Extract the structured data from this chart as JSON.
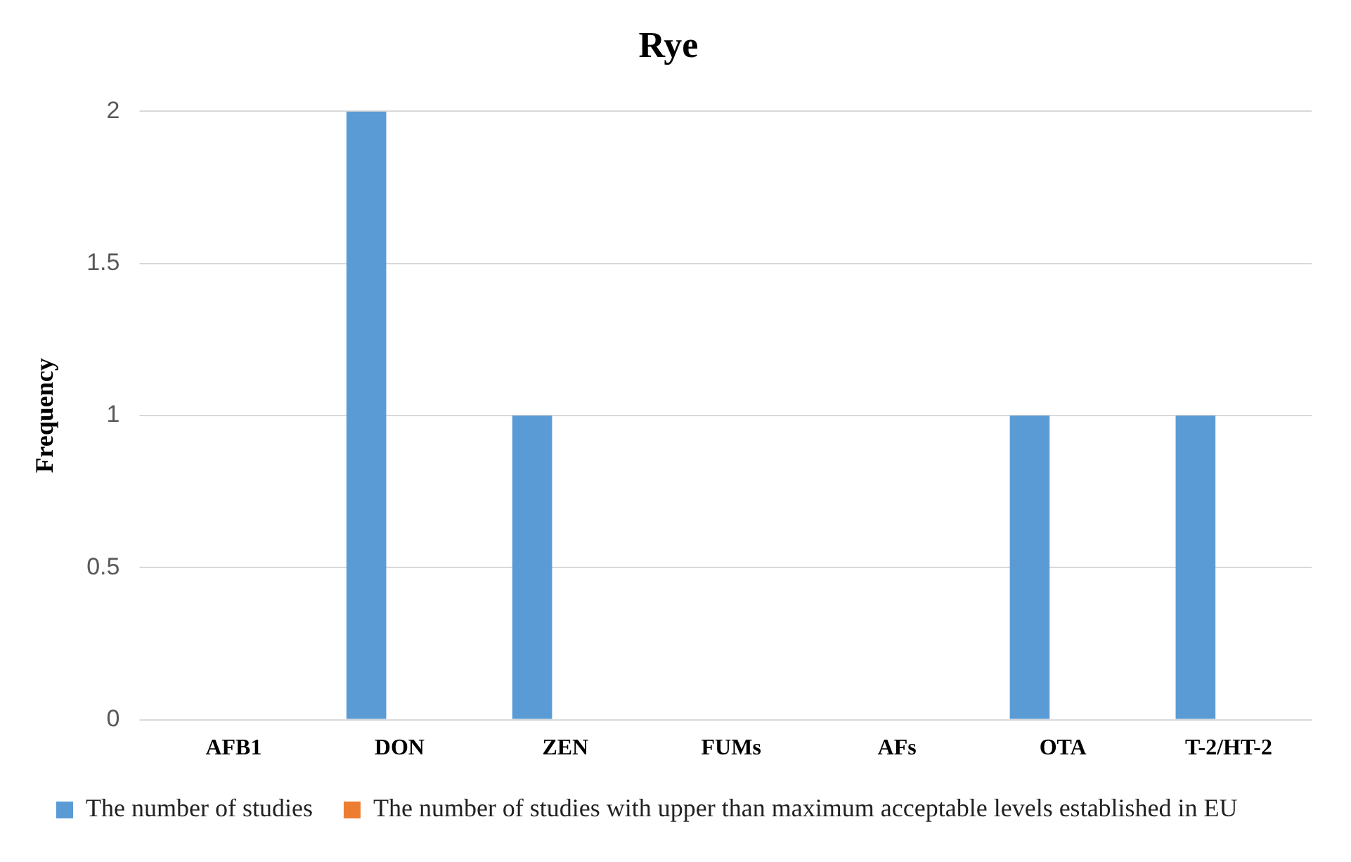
{
  "chart_data": {
    "type": "bar",
    "title": "Rye",
    "ylabel": "Frequency",
    "categories": [
      "AFB1",
      "DON",
      "ZEN",
      "FUMs",
      "AFs",
      "OTA",
      "T-2/HT-2"
    ],
    "series": [
      {
        "name": "The number of studies",
        "color": "#5b9bd5",
        "values": [
          0,
          2,
          1,
          0,
          0,
          1,
          1
        ]
      },
      {
        "name": "The number of studies with upper than maximum acceptable levels established in EU",
        "color": "#ed7d31",
        "values": [
          0,
          0,
          0,
          0,
          0,
          0,
          0
        ]
      }
    ],
    "ylim": [
      0,
      2
    ],
    "yticks": [
      0,
      0.5,
      1,
      1.5,
      2
    ],
    "grid": "y",
    "legend": "bottom"
  }
}
